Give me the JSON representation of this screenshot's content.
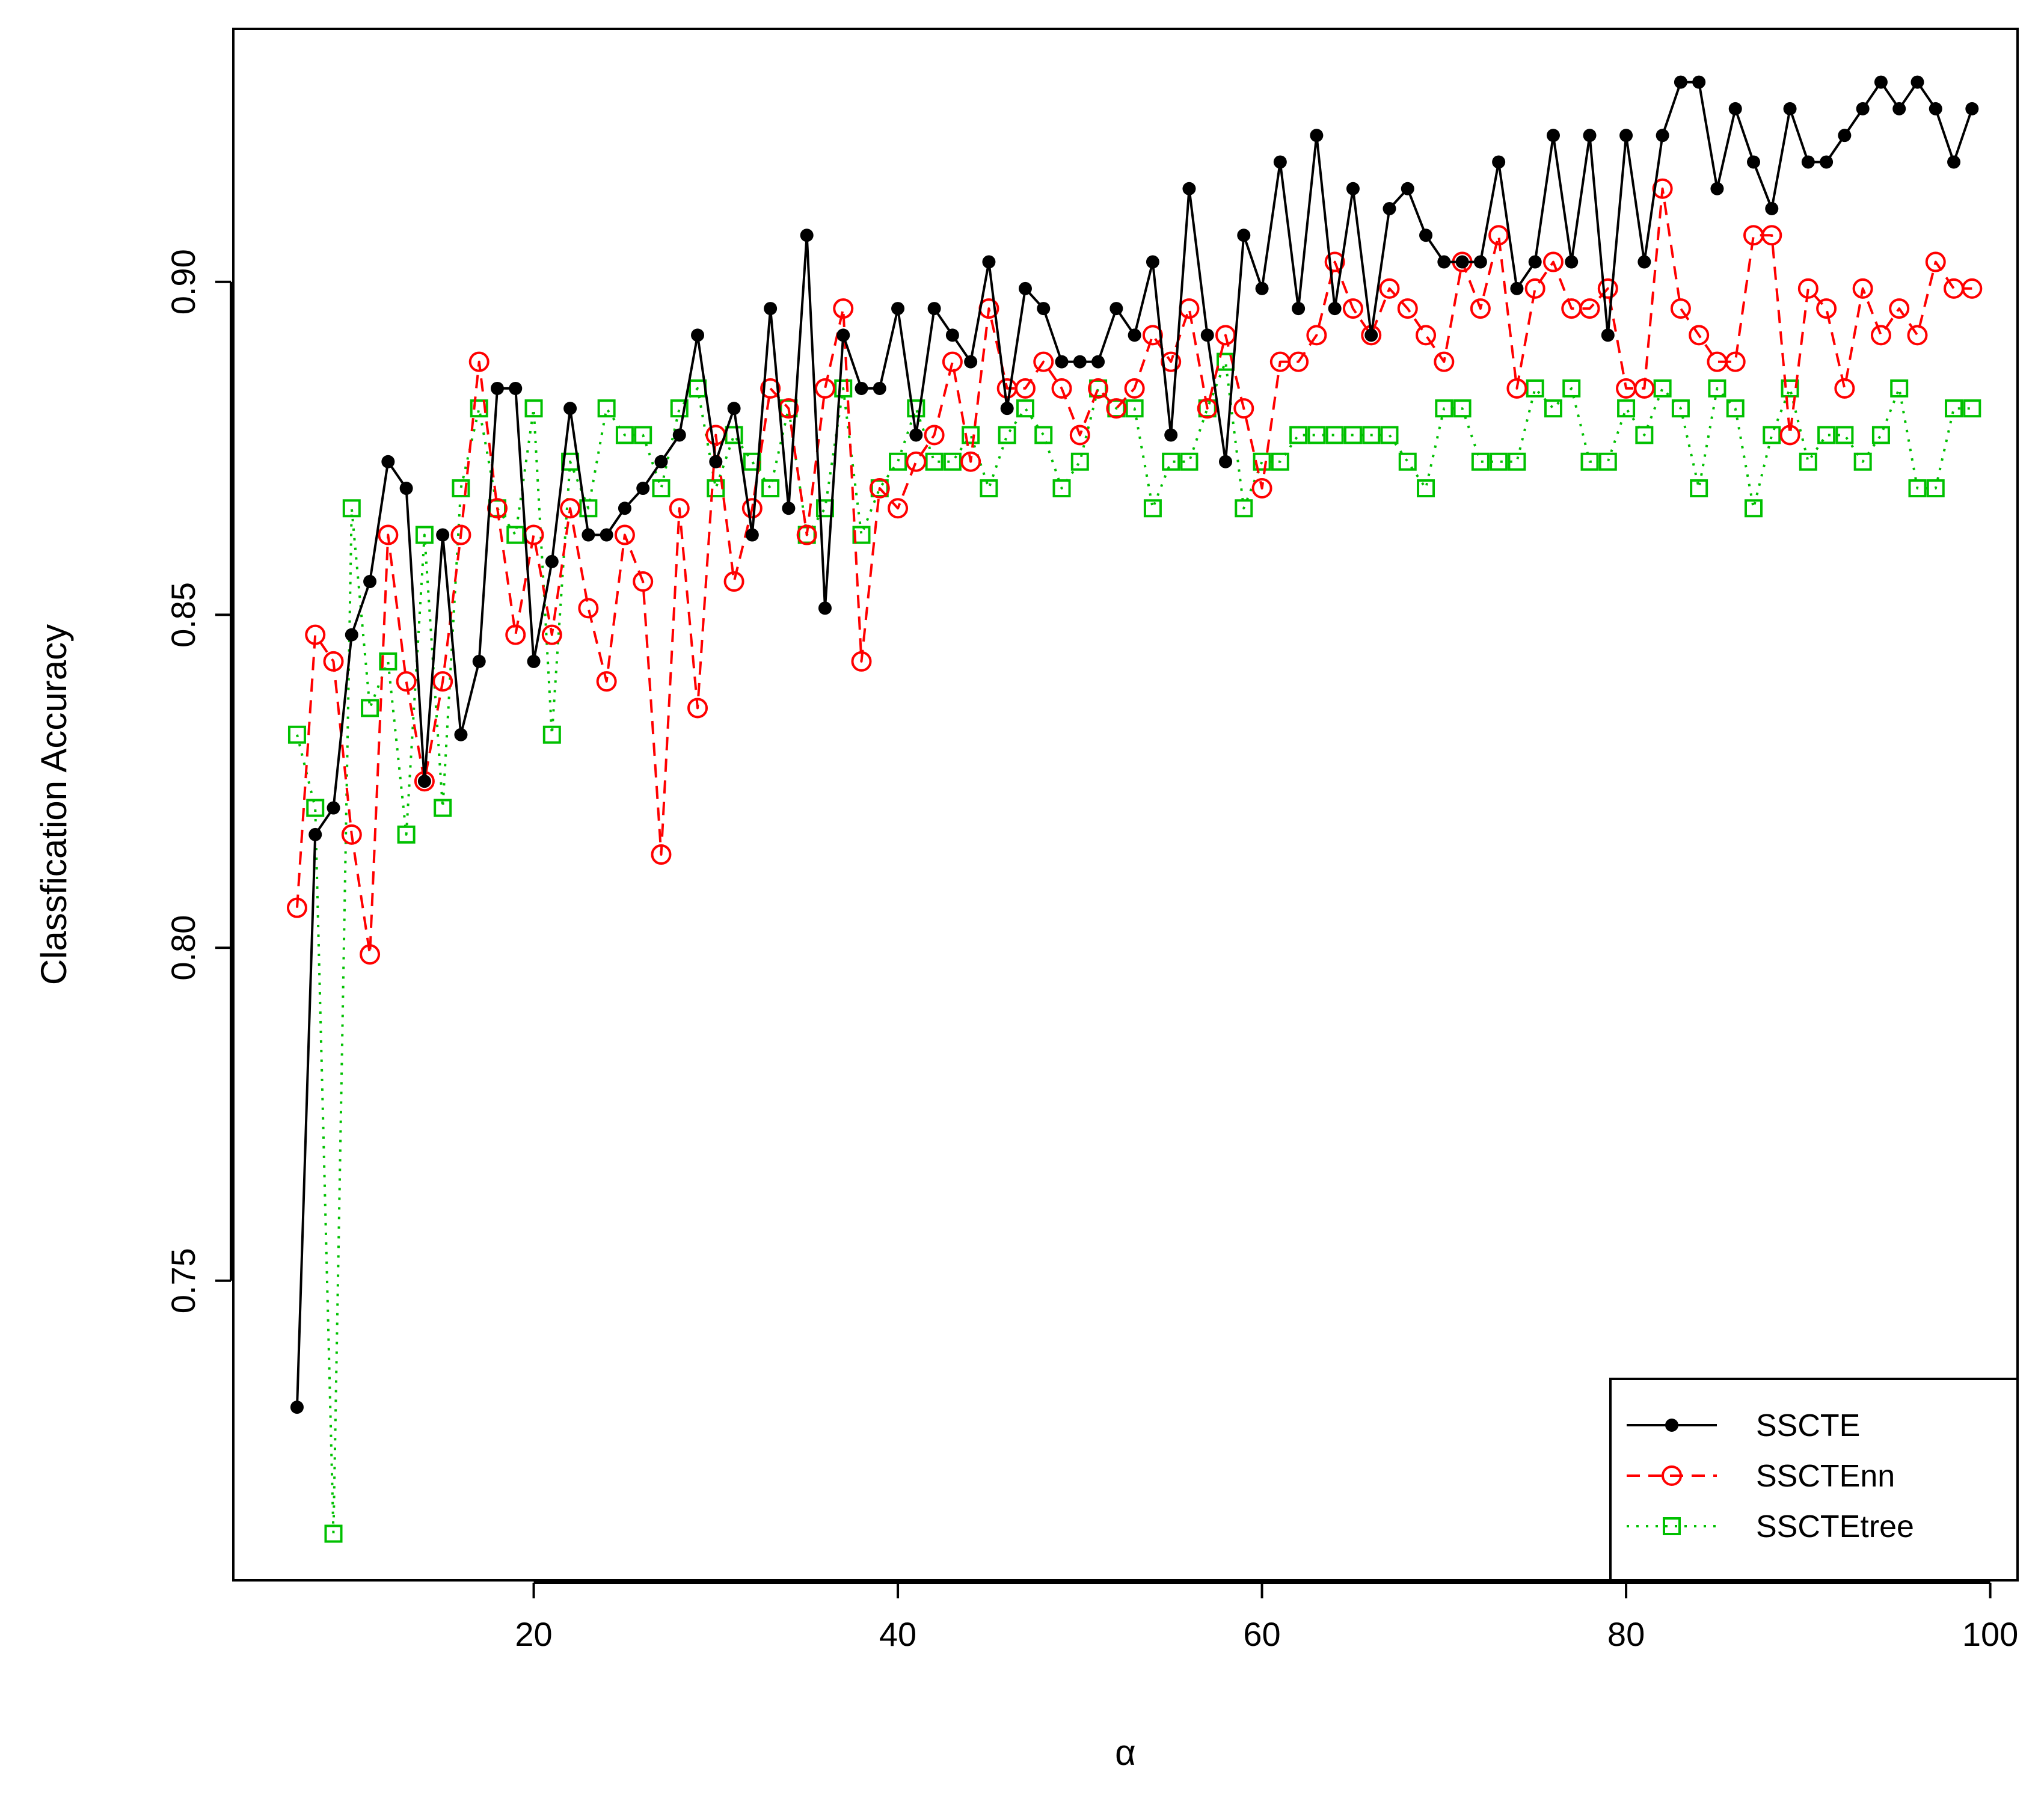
{
  "chart_data": {
    "type": "line",
    "title": "",
    "xlabel": "α",
    "ylabel": "Classfication Accuracy",
    "xlim": [
      3.5,
      101.5
    ],
    "ylim": [
      0.705,
      0.938
    ],
    "xticks": [
      20,
      40,
      60,
      80,
      100
    ],
    "yticks": [
      0.75,
      0.8,
      0.85,
      0.9
    ],
    "ytick_labels": [
      "0.75",
      "0.80",
      "0.85",
      "0.90"
    ],
    "xtick_labels": [
      "20",
      "40",
      "60",
      "80",
      "100"
    ],
    "grid": false,
    "legend_position": "bottom-right",
    "x": [
      7,
      8,
      9,
      10,
      11,
      12,
      13,
      14,
      15,
      16,
      17,
      18,
      19,
      20,
      21,
      22,
      23,
      24,
      25,
      26,
      27,
      28,
      29,
      30,
      31,
      32,
      33,
      34,
      35,
      36,
      37,
      38,
      39,
      40,
      41,
      42,
      43,
      44,
      45,
      46,
      47,
      48,
      49,
      50,
      51,
      52,
      53,
      54,
      55,
      56,
      57,
      58,
      59,
      60,
      61,
      62,
      63,
      64,
      65,
      66,
      67,
      68,
      69,
      70,
      71,
      72,
      73,
      74,
      75,
      76,
      77,
      78,
      79,
      80,
      81,
      82,
      83,
      84,
      85,
      86,
      87,
      88,
      89,
      90,
      91,
      92,
      93,
      94,
      95,
      96,
      97,
      98,
      99
    ],
    "series": [
      {
        "name": "SSCTE",
        "color": "#000000",
        "marker": "filled-circle",
        "linestyle": "solid",
        "values": [
          0.731,
          0.817,
          0.821,
          0.847,
          0.855,
          0.873,
          0.869,
          0.825,
          0.862,
          0.832,
          0.843,
          0.884,
          0.884,
          0.843,
          0.858,
          0.881,
          0.862,
          0.862,
          0.866,
          0.869,
          0.873,
          0.877,
          0.892,
          0.873,
          0.881,
          0.862,
          0.896,
          0.866,
          0.907,
          0.851,
          0.892,
          0.884,
          0.884,
          0.896,
          0.877,
          0.896,
          0.892,
          0.888,
          0.903,
          0.881,
          0.899,
          0.896,
          0.888,
          0.888,
          0.888,
          0.896,
          0.892,
          0.903,
          0.877,
          0.914,
          0.892,
          0.873,
          0.907,
          0.899,
          0.918,
          0.896,
          0.922,
          0.896,
          0.914,
          0.892,
          0.911,
          0.914,
          0.907,
          0.903,
          0.903,
          0.903,
          0.918,
          0.899,
          0.903,
          0.922,
          0.903,
          0.922,
          0.892,
          0.922,
          0.903,
          0.922,
          0.93,
          0.93,
          0.914,
          0.926,
          0.918,
          0.911,
          0.926,
          0.918,
          0.918,
          0.922,
          0.926,
          0.93,
          0.926,
          0.93,
          0.926,
          0.918,
          0.926
        ]
      },
      {
        "name": "SSCTEnn",
        "color": "#ff0000",
        "marker": "open-circle",
        "linestyle": "dashed",
        "values": [
          0.806,
          0.847,
          0.843,
          0.817,
          0.799,
          0.862,
          0.84,
          0.825,
          0.84,
          0.862,
          0.888,
          0.866,
          0.847,
          0.862,
          0.847,
          0.866,
          0.851,
          0.84,
          0.862,
          0.855,
          0.814,
          0.866,
          0.836,
          0.877,
          0.855,
          0.866,
          0.884,
          0.881,
          0.862,
          0.884,
          0.896,
          0.843,
          0.869,
          0.866,
          0.873,
          0.877,
          0.888,
          0.873,
          0.896,
          0.884,
          0.884,
          0.888,
          0.884,
          0.877,
          0.884,
          0.881,
          0.884,
          0.892,
          0.888,
          0.896,
          0.881,
          0.892,
          0.881,
          0.869,
          0.888,
          0.888,
          0.892,
          0.903,
          0.896,
          0.892,
          0.899,
          0.896,
          0.892,
          0.888,
          0.903,
          0.896,
          0.907,
          0.884,
          0.899,
          0.903,
          0.896,
          0.896,
          0.899,
          0.884,
          0.884,
          0.914,
          0.896,
          0.892,
          0.888,
          0.888,
          0.907,
          0.907,
          0.877,
          0.899,
          0.896,
          0.884,
          0.899,
          0.892,
          0.896,
          0.892,
          0.903,
          0.899,
          0.899
        ]
      },
      {
        "name": "SSCTEtree",
        "color": "#00c000",
        "marker": "open-square",
        "linestyle": "dotted",
        "values": [
          0.832,
          0.821,
          0.712,
          0.866,
          0.836,
          0.843,
          0.817,
          0.862,
          0.821,
          0.869,
          0.881,
          0.866,
          0.862,
          0.881,
          0.832,
          0.873,
          0.866,
          0.881,
          0.877,
          0.877,
          0.869,
          0.881,
          0.884,
          0.869,
          0.877,
          0.873,
          0.869,
          0.881,
          0.862,
          0.866,
          0.884,
          0.862,
          0.869,
          0.873,
          0.881,
          0.873,
          0.873,
          0.877,
          0.869,
          0.877,
          0.881,
          0.877,
          0.869,
          0.873,
          0.884,
          0.881,
          0.881,
          0.866,
          0.873,
          0.873,
          0.881,
          0.888,
          0.866,
          0.873,
          0.873,
          0.877,
          0.877,
          0.877,
          0.877,
          0.877,
          0.877,
          0.873,
          0.869,
          0.881,
          0.881,
          0.873,
          0.873,
          0.873,
          0.884,
          0.881,
          0.884,
          0.873,
          0.873,
          0.881,
          0.877,
          0.884,
          0.881,
          0.869,
          0.884,
          0.881,
          0.866,
          0.877,
          0.884,
          0.873,
          0.877,
          0.877,
          0.873,
          0.877,
          0.884,
          0.869,
          0.869,
          0.881,
          0.881
        ]
      }
    ]
  }
}
